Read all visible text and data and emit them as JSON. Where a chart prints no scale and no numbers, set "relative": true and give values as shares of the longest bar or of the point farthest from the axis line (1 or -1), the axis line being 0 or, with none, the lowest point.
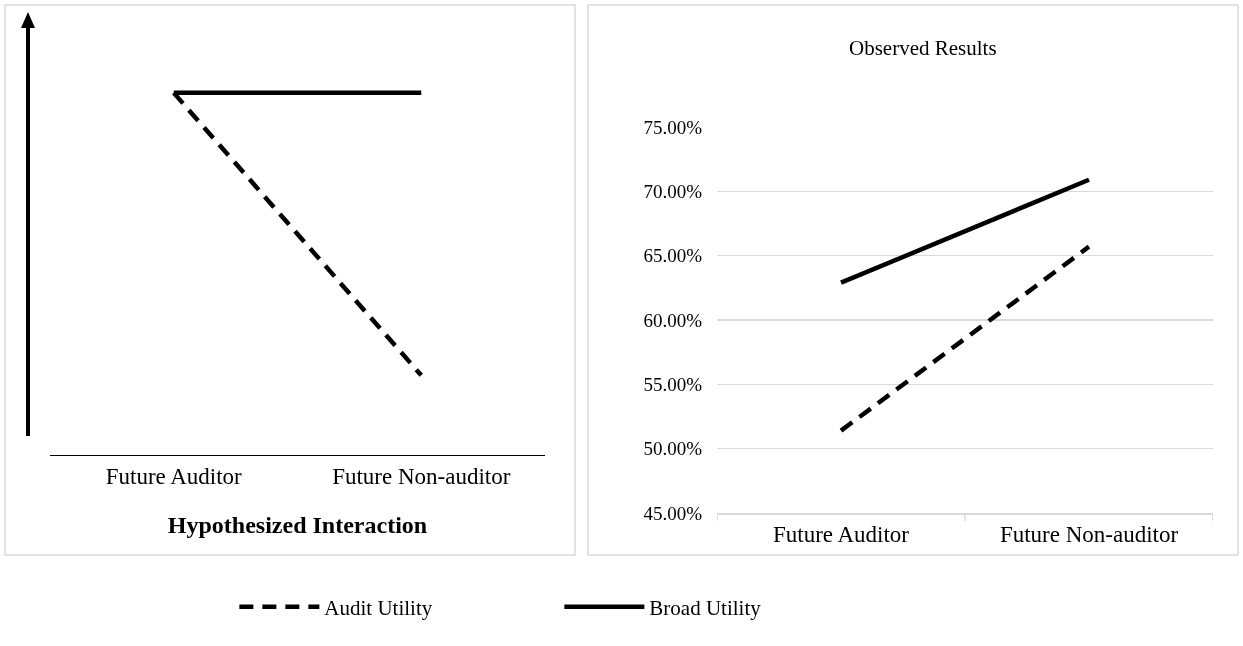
{
  "chart_data": [
    {
      "type": "line",
      "xlabel": "Hypothesized Interaction",
      "categories": [
        "Future Auditor",
        "Future Non-auditor"
      ],
      "relative": true,
      "legend": "bottom",
      "marker": "none",
      "series": [
        {
          "name": "Audit Utility",
          "color": "#000000",
          "line_style": "dashed",
          "values": [
            1,
            0.22
          ]
        },
        {
          "name": "Broad Utility",
          "color": "#000000",
          "line_style": "solid",
          "values": [
            1,
            1
          ]
        }
      ]
    },
    {
      "type": "line",
      "title": "Observed Results",
      "categories": [
        "Future Auditor",
        "Future Non-auditor"
      ],
      "ylim": [
        45,
        75
      ],
      "grid": "y",
      "legend": "bottom",
      "marker": "none",
      "yticks": [
        {
          "value": 45,
          "label": "45.00%"
        },
        {
          "value": 50,
          "label": "50.00%"
        },
        {
          "value": 55,
          "label": "55.00%"
        },
        {
          "value": 60,
          "label": "60.00%"
        },
        {
          "value": 65,
          "label": "65.00%"
        },
        {
          "value": 70,
          "label": "70.00%"
        },
        {
          "value": 75,
          "label": "75.00%"
        }
      ],
      "series": [
        {
          "name": "Audit Utility",
          "color": "#000000",
          "line_style": "dashed",
          "values": [
            51.4,
            65.7
          ]
        },
        {
          "name": "Broad Utility",
          "color": "#000000",
          "line_style": "solid",
          "values": [
            62.9,
            70.9
          ]
        }
      ]
    }
  ]
}
